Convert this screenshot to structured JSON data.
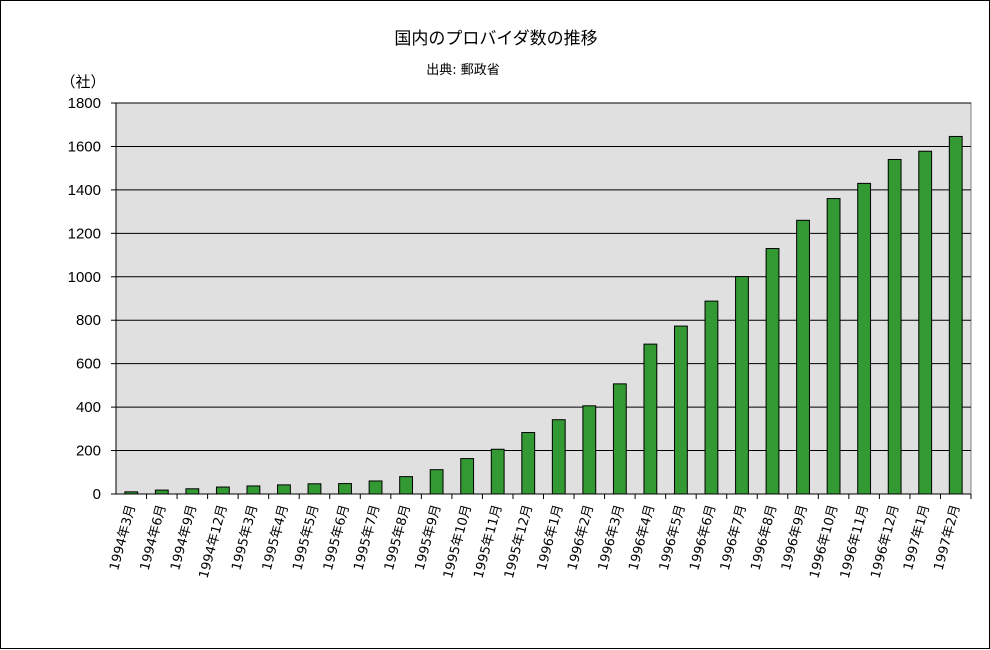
{
  "chart_data": {
    "type": "bar",
    "title": "国内のプロバイダ数の推移",
    "subtitle": "出典: 郵政省",
    "ylabel": "（社）",
    "xlabel": "",
    "ylim": [
      0,
      1800
    ],
    "yticks": [
      "0",
      "200",
      "400",
      "600",
      "800",
      "1000",
      "1200",
      "1400",
      "1600",
      "1800"
    ],
    "grid": true,
    "legend": "none",
    "bar_color": "#339933",
    "plot_background": "#e0e0e0",
    "categories": [
      "1994年3月",
      "1994年6月",
      "1994年9月",
      "1994年12月",
      "1995年3月",
      "1995年4月",
      "1995年5月",
      "1995年6月",
      "1995年7月",
      "1995年8月",
      "1995年9月",
      "1995年10月",
      "1995年11月",
      "1995年12月",
      "1996年1月",
      "1996年2月",
      "1996年3月",
      "1996年4月",
      "1996年5月",
      "1996年6月",
      "1996年7月",
      "1996年8月",
      "1996年9月",
      "1996年10月",
      "1996年11月",
      "1996年12月",
      "1997年1月",
      "1997年2月"
    ],
    "values": [
      10,
      18,
      24,
      32,
      37,
      42,
      47,
      48,
      60,
      80,
      112,
      163,
      206,
      283,
      342,
      406,
      507,
      690,
      773,
      888,
      1001,
      1130,
      1260,
      1360,
      1430,
      1540,
      1578,
      1646
    ]
  }
}
